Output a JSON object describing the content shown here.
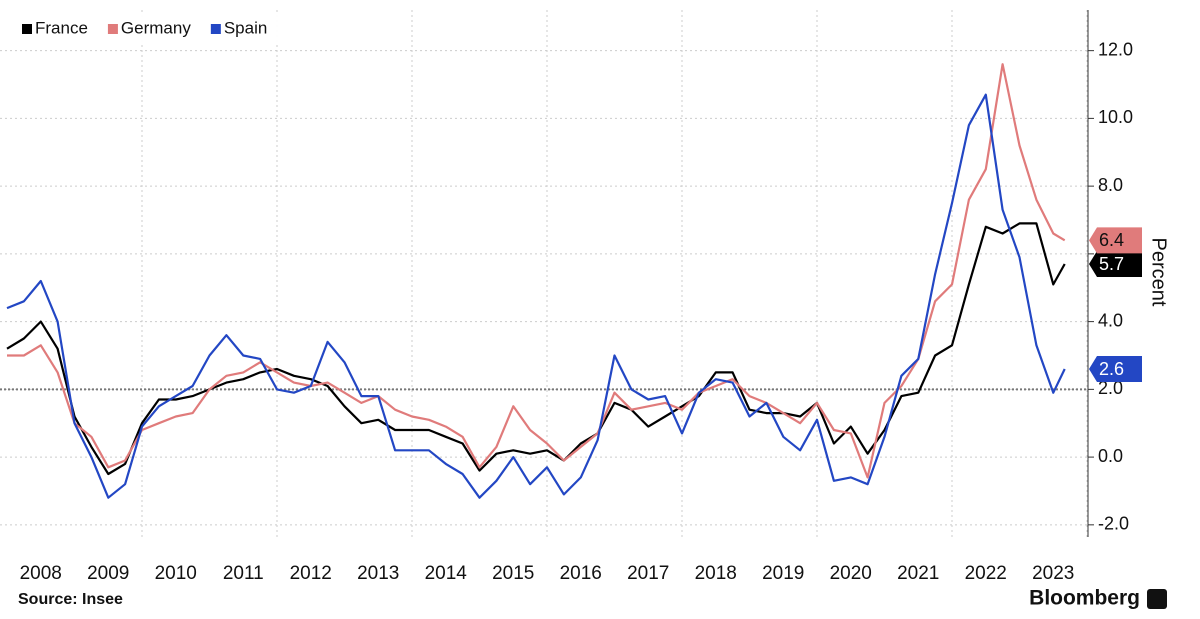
{
  "chart_data": {
    "type": "line",
    "x": [
      2008.0,
      2008.25,
      2008.5,
      2008.75,
      2009.0,
      2009.25,
      2009.5,
      2009.75,
      2010.0,
      2010.25,
      2010.5,
      2010.75,
      2011.0,
      2011.25,
      2011.5,
      2011.75,
      2012.0,
      2012.25,
      2012.5,
      2012.75,
      2013.0,
      2013.25,
      2013.5,
      2013.75,
      2014.0,
      2014.25,
      2014.5,
      2014.75,
      2015.0,
      2015.25,
      2015.5,
      2015.75,
      2016.0,
      2016.25,
      2016.5,
      2016.75,
      2017.0,
      2017.25,
      2017.5,
      2017.75,
      2018.0,
      2018.25,
      2018.5,
      2018.75,
      2019.0,
      2019.25,
      2019.5,
      2019.75,
      2020.0,
      2020.25,
      2020.5,
      2020.75,
      2021.0,
      2021.25,
      2021.5,
      2021.75,
      2022.0,
      2022.25,
      2022.5,
      2022.75,
      2023.0,
      2023.25,
      2023.5,
      2023.67
    ],
    "series": [
      {
        "name": "France",
        "color": "#000000",
        "values": [
          3.2,
          3.5,
          4.0,
          3.2,
          1.2,
          0.3,
          -0.5,
          -0.2,
          1.0,
          1.7,
          1.7,
          1.8,
          2.0,
          2.2,
          2.3,
          2.5,
          2.6,
          2.4,
          2.3,
          2.1,
          1.5,
          1.0,
          1.1,
          0.8,
          0.8,
          0.8,
          0.6,
          0.4,
          -0.4,
          0.1,
          0.2,
          0.1,
          0.2,
          -0.1,
          0.4,
          0.7,
          1.6,
          1.4,
          0.9,
          1.2,
          1.5,
          1.8,
          2.5,
          2.5,
          1.4,
          1.3,
          1.3,
          1.2,
          1.6,
          0.4,
          0.9,
          0.1,
          0.8,
          1.8,
          1.9,
          3.0,
          3.3,
          5.1,
          6.8,
          6.6,
          6.9,
          6.9,
          5.1,
          5.7
        ]
      },
      {
        "name": "Germany",
        "color": "#e07b7b",
        "values": [
          3.0,
          3.0,
          3.3,
          2.5,
          1.0,
          0.6,
          -0.3,
          -0.1,
          0.8,
          1.0,
          1.2,
          1.3,
          2.0,
          2.4,
          2.5,
          2.8,
          2.5,
          2.2,
          2.1,
          2.2,
          1.9,
          1.6,
          1.8,
          1.4,
          1.2,
          1.1,
          0.9,
          0.6,
          -0.3,
          0.3,
          1.5,
          0.8,
          0.4,
          -0.1,
          0.3,
          0.7,
          1.9,
          1.4,
          1.5,
          1.6,
          1.4,
          1.9,
          2.1,
          2.3,
          1.8,
          1.6,
          1.3,
          1.0,
          1.6,
          0.8,
          0.7,
          -0.6,
          1.6,
          2.1,
          2.9,
          4.6,
          5.1,
          7.6,
          8.5,
          11.6,
          9.2,
          7.6,
          6.6,
          6.4
        ]
      },
      {
        "name": "Spain",
        "color": "#2347c4",
        "values": [
          4.4,
          4.6,
          5.2,
          4.0,
          1.0,
          0.0,
          -1.2,
          -0.8,
          0.9,
          1.5,
          1.8,
          2.1,
          3.0,
          3.6,
          3.0,
          2.9,
          2.0,
          1.9,
          2.1,
          3.4,
          2.8,
          1.8,
          1.8,
          0.2,
          0.2,
          0.2,
          -0.2,
          -0.5,
          -1.2,
          -0.7,
          0.0,
          -0.8,
          -0.3,
          -1.1,
          -0.6,
          0.5,
          3.0,
          2.0,
          1.7,
          1.8,
          0.7,
          1.9,
          2.3,
          2.2,
          1.2,
          1.6,
          0.6,
          0.2,
          1.1,
          -0.7,
          -0.6,
          -0.8,
          0.6,
          2.4,
          2.9,
          5.4,
          7.5,
          9.8,
          10.7,
          7.3,
          5.9,
          3.3,
          1.9,
          2.6
        ]
      }
    ],
    "xlim": [
      2008,
      2024
    ],
    "xticks": [
      {
        "value": 2008.5,
        "label": "2008"
      },
      {
        "value": 2009.5,
        "label": "2009"
      },
      {
        "value": 2010.5,
        "label": "2010"
      },
      {
        "value": 2011.5,
        "label": "2011"
      },
      {
        "value": 2012.5,
        "label": "2012"
      },
      {
        "value": 2013.5,
        "label": "2013"
      },
      {
        "value": 2014.5,
        "label": "2014"
      },
      {
        "value": 2015.5,
        "label": "2015"
      },
      {
        "value": 2016.5,
        "label": "2016"
      },
      {
        "value": 2017.5,
        "label": "2017"
      },
      {
        "value": 2018.5,
        "label": "2018"
      },
      {
        "value": 2019.5,
        "label": "2019"
      },
      {
        "value": 2020.5,
        "label": "2020"
      },
      {
        "value": 2021.5,
        "label": "2021"
      },
      {
        "value": 2022.5,
        "label": "2022"
      },
      {
        "value": 2023.5,
        "label": "2023"
      }
    ],
    "ylim": [
      -2.3,
      13.2
    ],
    "yticks": [
      {
        "value": -2,
        "label": "-2.0"
      },
      {
        "value": 0,
        "label": "0.0"
      },
      {
        "value": 2,
        "label": "2.0"
      },
      {
        "value": 4,
        "label": "4.0"
      },
      {
        "value": 6,
        "label": "6.0"
      },
      {
        "value": 8,
        "label": "8.0"
      },
      {
        "value": 10,
        "label": "10.0"
      },
      {
        "value": 12,
        "label": "12.0"
      }
    ],
    "ylabel": "Percent",
    "hline": 2,
    "grid": true,
    "legend": "upper left",
    "source": "Source: Insee",
    "brand": "Bloomberg"
  }
}
